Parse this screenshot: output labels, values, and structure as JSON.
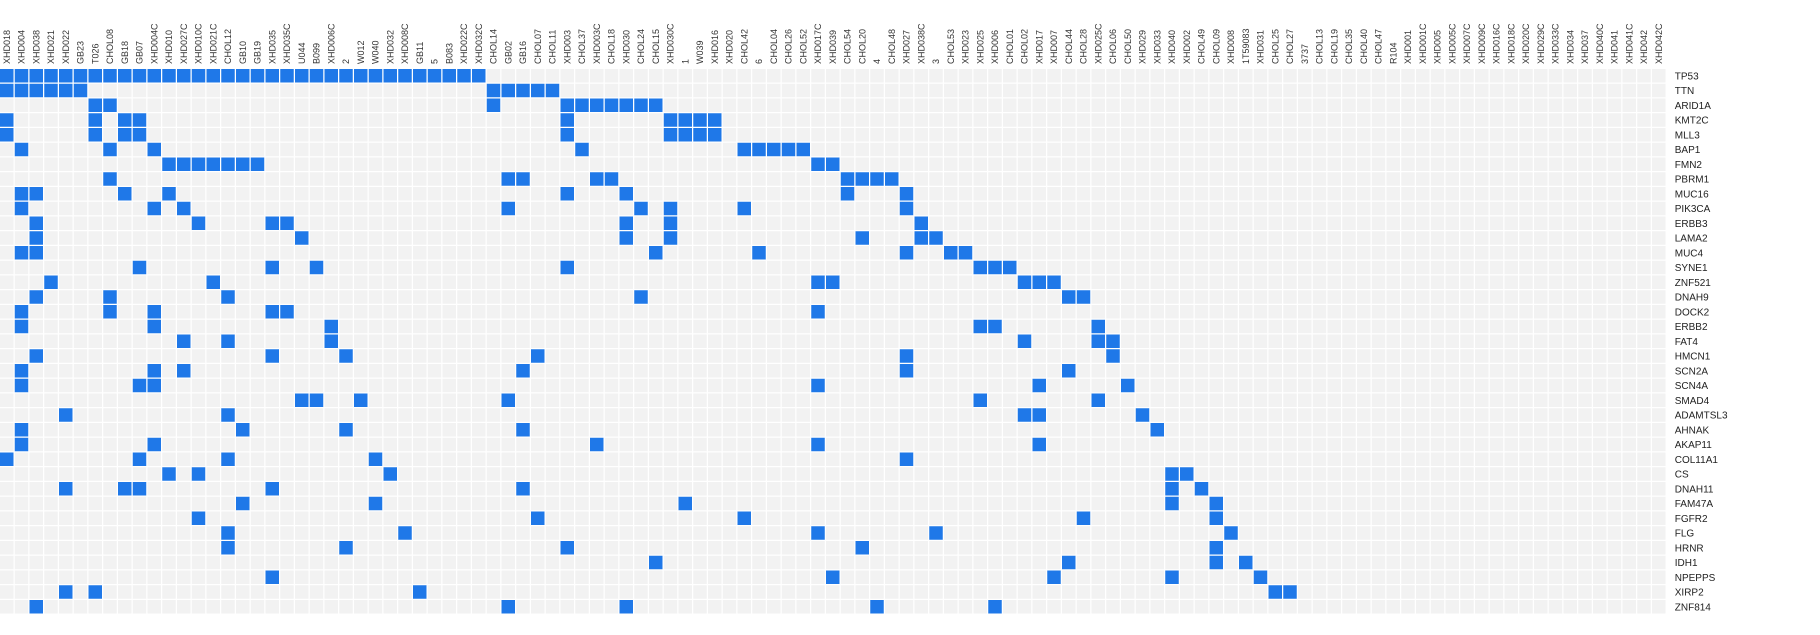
{
  "colors": {
    "background": "#ffffff",
    "cell": "#f2f2f2",
    "grid": "#ffffff",
    "mutation": "#1f78e8"
  },
  "chart_data": {
    "type": "heatmap",
    "title": "",
    "xlabel": "",
    "ylabel": "",
    "legend": "none",
    "samples": [
      "XHD018",
      "XHD004",
      "XHD038",
      "XHD021",
      "XHD022",
      "GB23",
      "T026",
      "CHOL08",
      "GB18",
      "GB07",
      "XHD004C",
      "XHD010",
      "XHD027C",
      "XHD010C",
      "XHD021C",
      "CHOL12",
      "GB10",
      "GB19",
      "XHD035",
      "XHD035C",
      "U044",
      "B099",
      "XHD006C",
      "2",
      "W012",
      "W040",
      "XHD032",
      "XHD008C",
      "GB11",
      "5",
      "B083",
      "XHD022C",
      "XHD032C",
      "CHOL14",
      "GB02",
      "GB16",
      "CHOL07",
      "CHOL11",
      "XHD003",
      "CHOL37",
      "XHD003C",
      "CHOL18",
      "XHD030",
      "CHOL24",
      "CHOL15",
      "XHD030C",
      "1",
      "W039",
      "XHD016",
      "XHD020",
      "CHOL42",
      "6",
      "CHOL04",
      "CHOL26",
      "CHOL52",
      "XHD017C",
      "XHD039",
      "CHOL54",
      "CHOL20",
      "4",
      "CHOL48",
      "XHD027",
      "XHD038C",
      "3",
      "CHOL53",
      "XHD023",
      "XHD025",
      "XHD006",
      "CHOL01",
      "CHOL02",
      "XHD017",
      "XHD007",
      "CHOL44",
      "CHOL28",
      "XHD025C",
      "CHOL06",
      "CHOL50",
      "XHD029",
      "XHD033",
      "XHD040",
      "XHD002",
      "CHOL49",
      "CHOL09",
      "XHD008",
      "1T59083",
      "XHD031",
      "CHOL25",
      "CHOL27",
      "3737",
      "CHOL13",
      "CHOL19",
      "CHOL35",
      "CHOL40",
      "CHOL47",
      "R104",
      "XHD001",
      "XHD001C",
      "XHD005",
      "XHD005C",
      "XHD007C",
      "XHD009C",
      "XHD016C",
      "XHD018C",
      "XHD020C",
      "XHD029C",
      "XHD033C",
      "XHD034",
      "XHD037",
      "XHD040C",
      "XHD041",
      "XHD041C",
      "XHD042",
      "XHD042C"
    ],
    "genes": [
      "TP53",
      "TTN",
      "ARID1A",
      "KMT2C",
      "MLL3",
      "BAP1",
      "FMN2",
      "PBRM1",
      "MUC16",
      "PIK3CA",
      "ERBB3",
      "LAMA2",
      "MUC4",
      "SYNE1",
      "ZNF521",
      "DNAH9",
      "DOCK2",
      "ERBB2",
      "FAT4",
      "HMCN1",
      "SCN2A",
      "SCN4A",
      "SMAD4",
      "ADAMTSL3",
      "AHNAK",
      "AKAP11",
      "COL11A1",
      "CS",
      "DNAH11",
      "FAM47A",
      "FGFR2",
      "FLG",
      "HRNR",
      "IDH1",
      "NPEPPS",
      "XIRP2",
      "ZNF814"
    ],
    "mutations": {
      "TP53": [
        0,
        1,
        2,
        3,
        4,
        5,
        6,
        7,
        8,
        9,
        10,
        11,
        12,
        13,
        14,
        15,
        16,
        17,
        18,
        19,
        20,
        21,
        22,
        23,
        24,
        25,
        26,
        27,
        28,
        29,
        30,
        31,
        32
      ],
      "TTN": [
        0,
        1,
        2,
        3,
        4,
        5,
        33,
        34,
        35,
        36,
        37
      ],
      "ARID1A": [
        6,
        7,
        33,
        38,
        39,
        40,
        41,
        42,
        43,
        44
      ],
      "KMT2C": [
        0,
        6,
        8,
        9,
        38,
        45,
        46,
        47,
        48
      ],
      "MLL3": [
        0,
        6,
        8,
        9,
        38,
        45,
        46,
        47,
        48
      ],
      "BAP1": [
        1,
        7,
        10,
        39,
        50,
        51,
        52,
        53,
        54
      ],
      "FMN2": [
        11,
        12,
        13,
        14,
        15,
        16,
        17,
        55,
        56
      ],
      "PBRM1": [
        7,
        34,
        35,
        40,
        41,
        57,
        58,
        59,
        60
      ],
      "MUC16": [
        1,
        2,
        8,
        11,
        38,
        42,
        57,
        61
      ],
      "PIK3CA": [
        1,
        10,
        12,
        34,
        43,
        45,
        50,
        61
      ],
      "ERBB3": [
        2,
        13,
        18,
        19,
        42,
        45,
        62
      ],
      "LAMA2": [
        2,
        20,
        42,
        45,
        58,
        62,
        63
      ],
      "MUC4": [
        1,
        2,
        44,
        51,
        61,
        64,
        65
      ],
      "SYNE1": [
        9,
        18,
        21,
        38,
        66,
        67,
        68
      ],
      "ZNF521": [
        3,
        14,
        55,
        56,
        69,
        70,
        71
      ],
      "DNAH9": [
        2,
        7,
        15,
        43,
        72,
        73
      ],
      "DOCK2": [
        1,
        7,
        10,
        18,
        19,
        55
      ],
      "ERBB2": [
        1,
        10,
        22,
        66,
        67,
        74
      ],
      "FAT4": [
        12,
        15,
        22,
        69,
        74,
        75
      ],
      "HMCN1": [
        2,
        18,
        23,
        36,
        61,
        75
      ],
      "SCN2A": [
        1,
        10,
        12,
        35,
        61,
        72
      ],
      "SCN4A": [
        1,
        9,
        10,
        55,
        70,
        76
      ],
      "SMAD4": [
        20,
        21,
        24,
        34,
        66,
        74
      ],
      "ADAMTSL3": [
        4,
        15,
        69,
        70,
        77
      ],
      "AHNAK": [
        1,
        16,
        23,
        35,
        78
      ],
      "AKAP11": [
        1,
        10,
        40,
        55,
        70
      ],
      "COL11A1": [
        0,
        9,
        15,
        25,
        61
      ],
      "CS": [
        11,
        13,
        26,
        79,
        80
      ],
      "DNAH11": [
        4,
        8,
        9,
        18,
        35,
        79,
        81
      ],
      "FAM47A": [
        16,
        25,
        46,
        79,
        82
      ],
      "FGFR2": [
        13,
        36,
        50,
        73,
        82
      ],
      "FLG": [
        15,
        27,
        55,
        63,
        83
      ],
      "HRNR": [
        15,
        23,
        38,
        58,
        82
      ],
      "IDH1": [
        44,
        72,
        82,
        84
      ],
      "NPEPPS": [
        18,
        56,
        71,
        79,
        85
      ],
      "XIRP2": [
        4,
        6,
        28,
        86,
        87
      ],
      "ZNF814": [
        2,
        34,
        42,
        59,
        67
      ]
    }
  }
}
